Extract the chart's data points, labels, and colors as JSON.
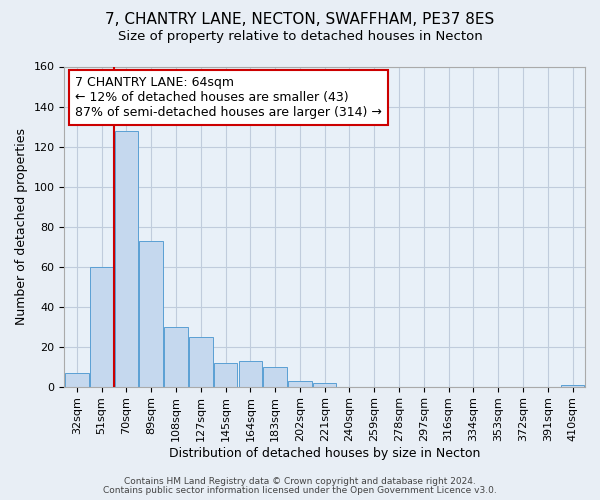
{
  "title": "7, CHANTRY LANE, NECTON, SWAFFHAM, PE37 8ES",
  "subtitle": "Size of property relative to detached houses in Necton",
  "xlabel": "Distribution of detached houses by size in Necton",
  "ylabel": "Number of detached properties",
  "categories": [
    "32sqm",
    "51sqm",
    "70sqm",
    "89sqm",
    "108sqm",
    "127sqm",
    "145sqm",
    "164sqm",
    "183sqm",
    "202sqm",
    "221sqm",
    "240sqm",
    "259sqm",
    "278sqm",
    "297sqm",
    "316sqm",
    "334sqm",
    "353sqm",
    "372sqm",
    "391sqm",
    "410sqm"
  ],
  "values": [
    7,
    60,
    128,
    73,
    30,
    25,
    12,
    13,
    10,
    3,
    2,
    0,
    0,
    0,
    0,
    0,
    0,
    0,
    0,
    0,
    1
  ],
  "bar_color": "#c5d8ee",
  "bar_edge_color": "#5a9fd4",
  "marker_line_color": "#cc0000",
  "ylim": [
    0,
    160
  ],
  "yticks": [
    0,
    20,
    40,
    60,
    80,
    100,
    120,
    140,
    160
  ],
  "annotation_line1": "7 CHANTRY LANE: 64sqm",
  "annotation_line2": "← 12% of detached houses are smaller (43)",
  "annotation_line3": "87% of semi-detached houses are larger (314) →",
  "footer_line1": "Contains HM Land Registry data © Crown copyright and database right 2024.",
  "footer_line2": "Contains public sector information licensed under the Open Government Licence v3.0.",
  "background_color": "#e8eef5",
  "plot_background_color": "#e8f0f8",
  "grid_color": "#c0ccdc",
  "title_fontsize": 11,
  "subtitle_fontsize": 9.5,
  "axis_label_fontsize": 9,
  "tick_fontsize": 8,
  "annotation_fontsize": 9,
  "footer_fontsize": 6.5
}
